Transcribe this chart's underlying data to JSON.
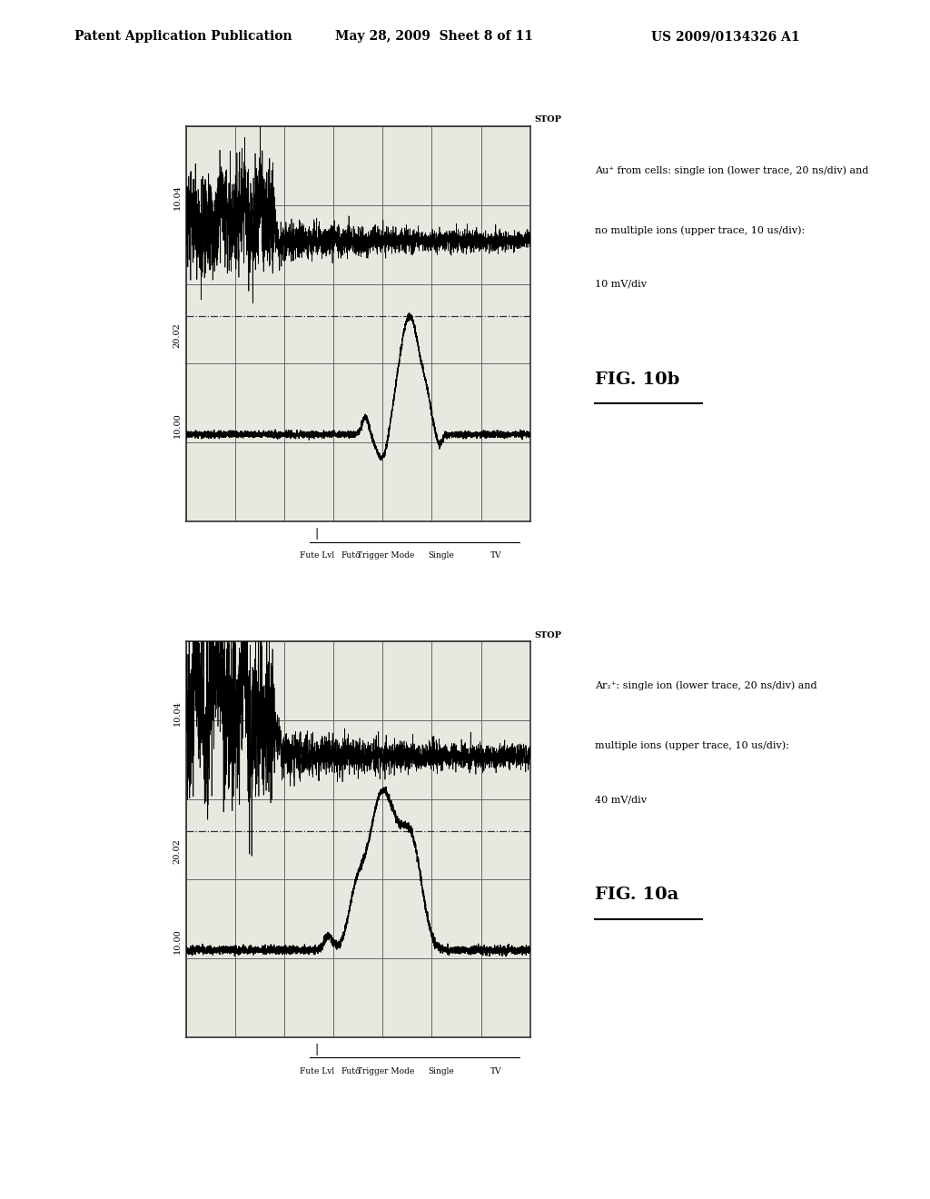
{
  "bg_color": "#ffffff",
  "header_text": "Patent Application Publication",
  "header_date": "May 28, 2009  Sheet 8 of 11",
  "header_patent": "US 2009/0134326 A1",
  "fig_a_label": "FIG. 10a",
  "fig_b_label": "FIG. 10b",
  "fig_a_caption_line1": "Ar₂⁺: single ion (lower trace, 20 ns/div) and",
  "fig_a_caption_line2": "multiple ions (upper trace, 10 us/div):",
  "fig_a_caption_line3": "40 mV/div",
  "fig_b_caption_line1": "Au⁺ from cells: single ion (lower trace, 20 ns/div) and",
  "fig_b_caption_line2": "no multiple ions (upper trace, 10 us/div):",
  "fig_b_caption_line3": "10 mV/div",
  "bottom_labels": [
    "Fute Lvl",
    "Futo",
    "Trigger Mode",
    "Single",
    "TV"
  ],
  "y_tick_labels": [
    "10.00",
    "20.02",
    "10.04"
  ],
  "grid_color": "#444444",
  "trace_color": "#000000",
  "panel_bg": "#e8e8e0"
}
